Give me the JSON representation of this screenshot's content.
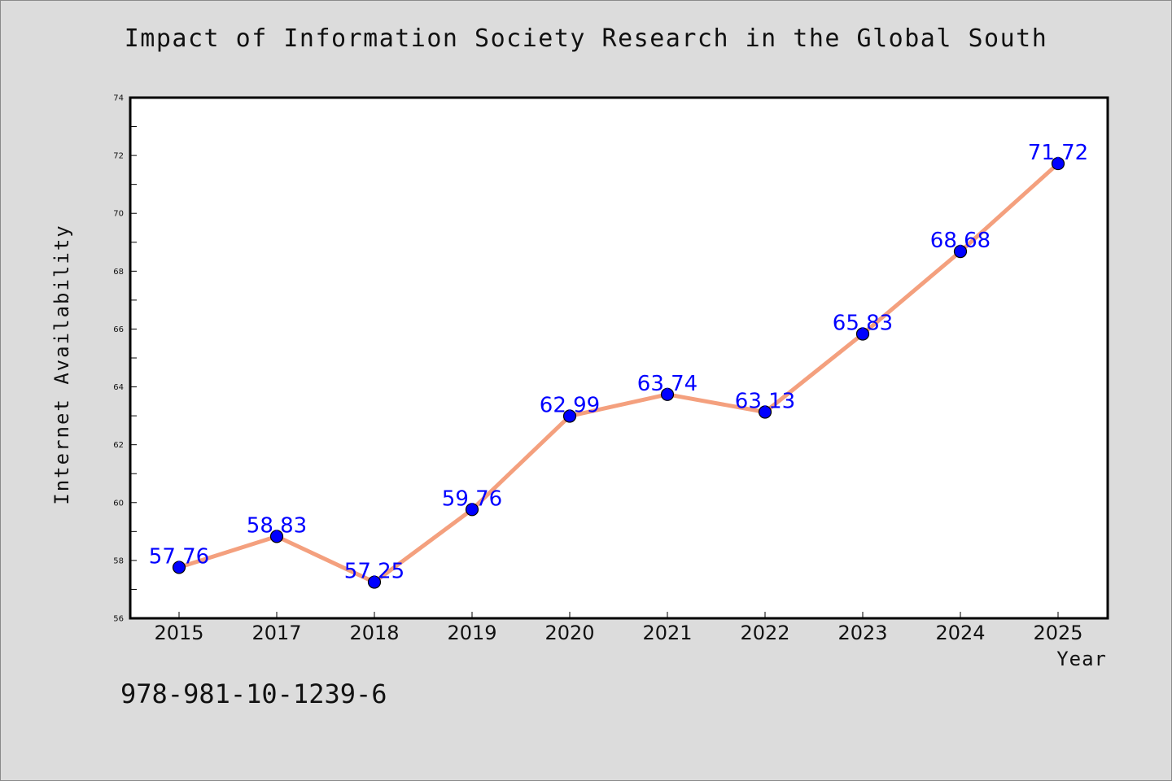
{
  "chart_data": {
    "type": "line",
    "title": "Impact of Information Society Research in the Global South",
    "xlabel": "Year",
    "ylabel": "Internet Availability",
    "categories": [
      "2015",
      "2017",
      "2018",
      "2019",
      "2020",
      "2021",
      "2022",
      "2023",
      "2024",
      "2025"
    ],
    "series": [
      {
        "values": [
          57.76,
          58.83,
          57.25,
          59.76,
          62.99,
          63.74,
          63.13,
          65.83,
          68.68,
          71.72
        ],
        "line_color": "#f4a07e",
        "marker_color": "#0000ff"
      }
    ],
    "data_labels": [
      "57.76",
      "58.83",
      "57.25",
      "59.76",
      "62.99",
      "63.74",
      "63.13",
      "65.83",
      "68.68",
      "71.72"
    ],
    "ylim": [
      56,
      74
    ],
    "yticks": [
      "56",
      "58",
      "60",
      "62",
      "64",
      "66",
      "68",
      "70",
      "72",
      "74"
    ],
    "grid": false,
    "legend": "none"
  },
  "footnote": "978-981-10-1239-6"
}
